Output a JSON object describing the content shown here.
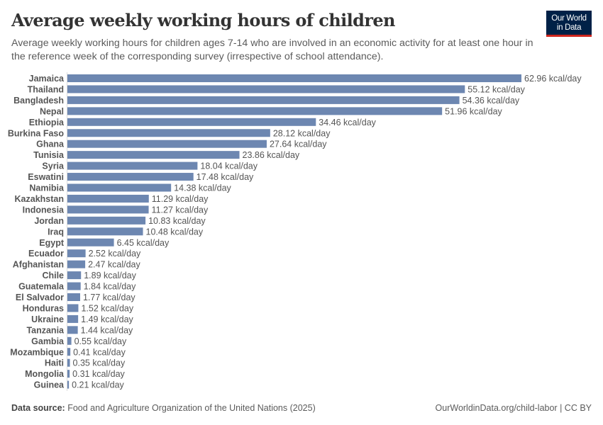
{
  "header": {
    "title": "Average weekly working hours of children",
    "subtitle": "Average weekly working hours for children ages 7-14 who are involved in an economic activity for at least one hour in the reference week of the corresponding survey (irrespective of school attendance).",
    "logo_line1": "Our World",
    "logo_line2": "in Data"
  },
  "footer": {
    "source_label": "Data source:",
    "source_text": "Food and Agriculture Organization of the United Nations (2025)",
    "url_license": "OurWorldinData.org/child-labor | CC BY"
  },
  "colors": {
    "bar": "#6d87b1",
    "logo_bg": "#002147",
    "logo_accent": "#ce261e"
  },
  "chart_data": {
    "type": "bar",
    "orientation": "horizontal",
    "title": "Average weekly working hours of children",
    "unit_suffix": " kcal/day",
    "xlabel": "",
    "ylabel": "",
    "xlim": [
      0,
      62.96
    ],
    "grid": false,
    "categories": [
      "Jamaica",
      "Thailand",
      "Bangladesh",
      "Nepal",
      "Ethiopia",
      "Burkina Faso",
      "Ghana",
      "Tunisia",
      "Syria",
      "Eswatini",
      "Namibia",
      "Kazakhstan",
      "Indonesia",
      "Jordan",
      "Iraq",
      "Egypt",
      "Ecuador",
      "Afghanistan",
      "Chile",
      "Guatemala",
      "El Salvador",
      "Honduras",
      "Ukraine",
      "Tanzania",
      "Gambia",
      "Mozambique",
      "Haiti",
      "Mongolia",
      "Guinea"
    ],
    "values": [
      62.96,
      55.12,
      54.36,
      51.96,
      34.46,
      28.12,
      27.64,
      23.86,
      18.04,
      17.48,
      14.38,
      11.29,
      11.27,
      10.83,
      10.48,
      6.45,
      2.52,
      2.47,
      1.89,
      1.84,
      1.77,
      1.52,
      1.49,
      1.44,
      0.55,
      0.41,
      0.35,
      0.31,
      0.21
    ],
    "value_labels": [
      "62.96 kcal/day",
      "55.12 kcal/day",
      "54.36 kcal/day",
      "51.96 kcal/day",
      "34.46 kcal/day",
      "28.12 kcal/day",
      "27.64 kcal/day",
      "23.86 kcal/day",
      "18.04 kcal/day",
      "17.48 kcal/day",
      "14.38 kcal/day",
      "11.29 kcal/day",
      "11.27 kcal/day",
      "10.83 kcal/day",
      "10.48 kcal/day",
      "6.45 kcal/day",
      "2.52 kcal/day",
      "2.47 kcal/day",
      "1.89 kcal/day",
      "1.84 kcal/day",
      "1.77 kcal/day",
      "1.52 kcal/day",
      "1.49 kcal/day",
      "1.44 kcal/day",
      "0.55 kcal/day",
      "0.41 kcal/day",
      "0.35 kcal/day",
      "0.31 kcal/day",
      "0.21 kcal/day"
    ]
  }
}
